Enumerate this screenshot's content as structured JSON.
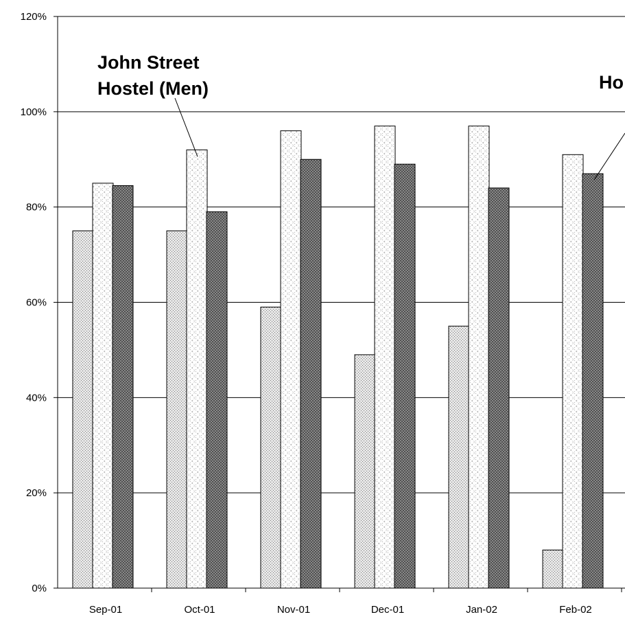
{
  "chart_data": {
    "type": "bar",
    "categories": [
      "Sep-01",
      "Oct-01",
      "Nov-01",
      "Dec-01",
      "Jan-02",
      "Feb-02"
    ],
    "series": [
      {
        "values": [
          0.75,
          0.75,
          0.59,
          0.49,
          0.55,
          0.08
        ]
      },
      {
        "name": "John Street Hostel (Men)",
        "values": [
          0.85,
          0.92,
          0.96,
          0.97,
          0.97,
          0.91
        ]
      },
      {
        "values": [
          0.845,
          0.79,
          0.9,
          0.89,
          0.84,
          0.87
        ]
      }
    ],
    "ylim": [
      0,
      1.2
    ],
    "yticks": [
      0,
      0.2,
      0.4,
      0.6,
      0.8,
      1.0,
      1.2
    ],
    "ytick_labels": [
      "0%",
      "20%",
      "40%",
      "60%",
      "80%",
      "100%",
      "120%"
    ],
    "grid": true,
    "annotations": [
      {
        "lines": [
          "John Street",
          "Hostel (Men)"
        ],
        "series": 1,
        "category": "Oct-01"
      },
      {
        "lines": [
          "Ho"
        ],
        "series": 2,
        "category": "Feb-02"
      }
    ],
    "colors": {
      "series0": "#d9d9d9",
      "series1": "#ffffff",
      "series2": "#8a8a8a",
      "grid": "#000000"
    }
  }
}
